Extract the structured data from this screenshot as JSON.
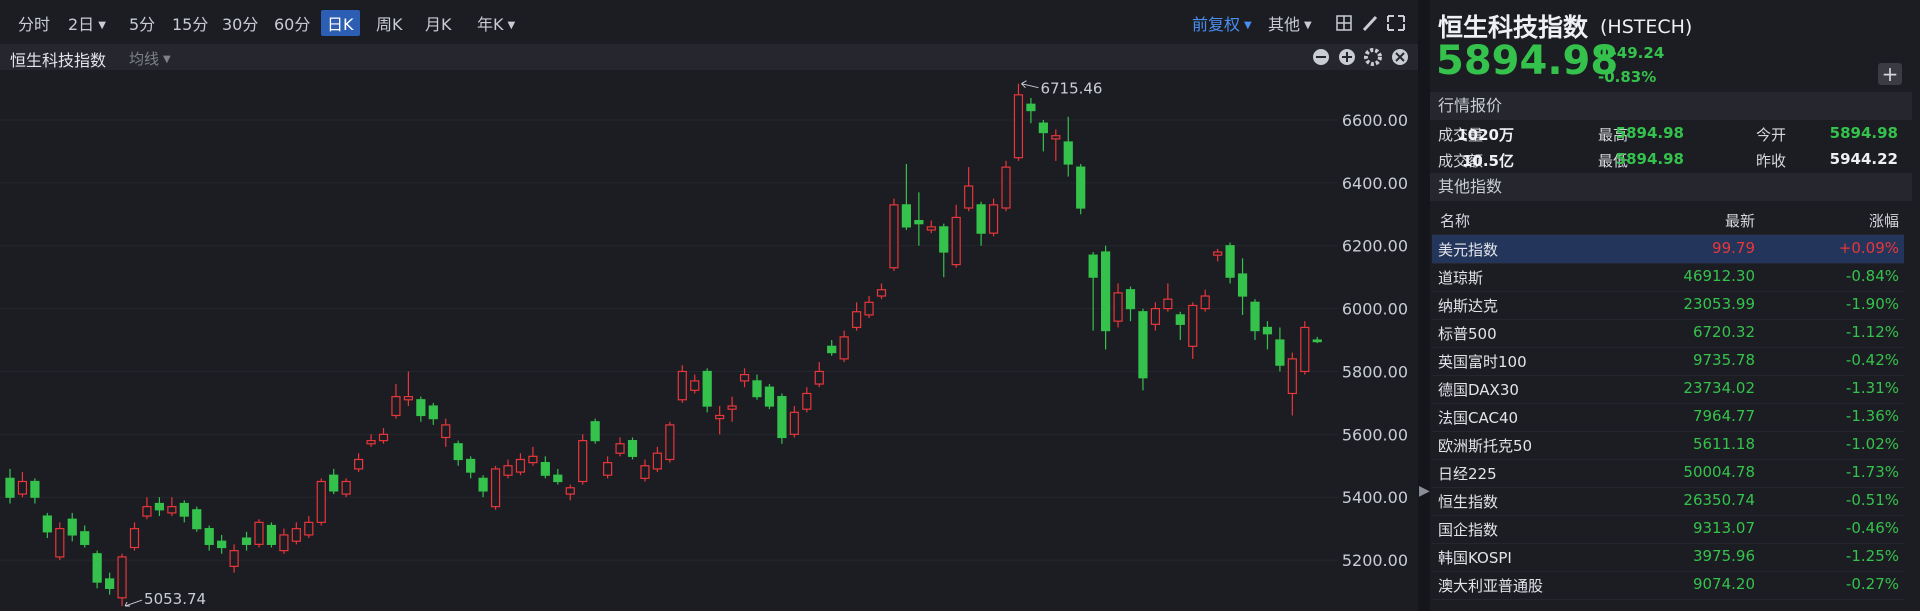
{
  "toolbar": {
    "periods": [
      "分时",
      "2日",
      "5分",
      "15分",
      "30分",
      "60分",
      "日K",
      "周K",
      "月K",
      "年K"
    ],
    "options": [
      "前复权",
      "其他"
    ]
  },
  "chart_data": {
    "type": "candlestick",
    "title": "恒生科技指数",
    "indicator": "均线",
    "open": [
      5460,
      5410,
      5450,
      5340,
      5210,
      5330,
      5290,
      5220,
      5140,
      5080,
      5240,
      5340,
      5380,
      5350,
      5380,
      5360,
      5300,
      5260,
      5180,
      5270,
      5250,
      5310,
      5230,
      5260,
      5280,
      5320,
      5470,
      5410,
      5490,
      5570,
      5580,
      5660,
      5710,
      5710,
      5690,
      5590,
      5570,
      5520,
      5460,
      5370,
      5470,
      5480,
      5510,
      5510,
      5470,
      5410,
      5450,
      5640,
      5470,
      5540,
      5580,
      5460,
      5490,
      5520,
      5710,
      5740,
      5800,
      5650,
      5680,
      5770,
      5770,
      5750,
      5720,
      5600,
      5680,
      5760,
      5880,
      5840,
      5940,
      5980,
      6040,
      6130,
      6330,
      6280,
      6250,
      6260,
      6140,
      6320,
      6330,
      6240,
      6320,
      6480,
      6650,
      6590,
      6540,
      6530,
      6450,
      6170,
      6180,
      5960,
      6060,
      5990,
      5950,
      6000,
      5980,
      5880,
      6000,
      6170,
      6200,
      6110,
      6020,
      5940,
      5900,
      5730,
      5800,
      5900
    ],
    "high": [
      5490,
      5480,
      5460,
      5350,
      5320,
      5350,
      5310,
      5230,
      5160,
      5220,
      5320,
      5400,
      5400,
      5400,
      5390,
      5370,
      5310,
      5280,
      5250,
      5290,
      5330,
      5320,
      5300,
      5320,
      5340,
      5460,
      5490,
      5460,
      5540,
      5600,
      5620,
      5760,
      5800,
      5720,
      5700,
      5650,
      5580,
      5530,
      5470,
      5500,
      5520,
      5540,
      5560,
      5530,
      5490,
      5440,
      5600,
      5650,
      5530,
      5590,
      5590,
      5520,
      5560,
      5640,
      5820,
      5790,
      5810,
      5690,
      5720,
      5810,
      5790,
      5760,
      5730,
      5690,
      5750,
      5830,
      5900,
      5930,
      6020,
      6040,
      6080,
      6350,
      6460,
      6370,
      6280,
      6270,
      6330,
      6450,
      6340,
      6350,
      6470,
      6715.46,
      6670,
      6600,
      6570,
      6610,
      6460,
      6180,
      6200,
      6080,
      6070,
      6000,
      6020,
      6080,
      5990,
      6020,
      6060,
      6190,
      6210,
      6160,
      6030,
      5960,
      5940,
      5860,
      5960,
      5910
    ],
    "low": [
      5380,
      5400,
      5380,
      5270,
      5200,
      5260,
      5240,
      5110,
      5090,
      5053.74,
      5230,
      5330,
      5340,
      5340,
      5320,
      5290,
      5230,
      5220,
      5160,
      5230,
      5240,
      5240,
      5220,
      5250,
      5270,
      5310,
      5410,
      5400,
      5480,
      5560,
      5570,
      5650,
      5690,
      5640,
      5630,
      5560,
      5500,
      5460,
      5400,
      5360,
      5460,
      5470,
      5500,
      5460,
      5440,
      5390,
      5440,
      5570,
      5460,
      5530,
      5520,
      5450,
      5480,
      5510,
      5700,
      5730,
      5670,
      5600,
      5640,
      5750,
      5710,
      5680,
      5570,
      5590,
      5670,
      5750,
      5850,
      5830,
      5930,
      5970,
      6030,
      6120,
      6250,
      6200,
      6240,
      6100,
      6130,
      6310,
      6200,
      6230,
      6310,
      6470,
      6590,
      6500,
      6470,
      6420,
      6300,
      5930,
      5870,
      5940,
      5960,
      5740,
      5930,
      5990,
      5900,
      5840,
      5990,
      6150,
      6080,
      5980,
      5900,
      5870,
      5800,
      5660,
      5790,
      5890
    ],
    "close": [
      5400,
      5450,
      5400,
      5290,
      5300,
      5280,
      5250,
      5130,
      5110,
      5210,
      5300,
      5370,
      5360,
      5370,
      5340,
      5300,
      5250,
      5240,
      5230,
      5250,
      5320,
      5250,
      5280,
      5300,
      5320,
      5450,
      5420,
      5450,
      5520,
      5580,
      5600,
      5720,
      5720,
      5660,
      5650,
      5630,
      5520,
      5480,
      5420,
      5490,
      5500,
      5520,
      5530,
      5470,
      5450,
      5430,
      5580,
      5580,
      5510,
      5570,
      5530,
      5500,
      5540,
      5630,
      5800,
      5770,
      5690,
      5660,
      5690,
      5790,
      5720,
      5690,
      5590,
      5670,
      5730,
      5800,
      5860,
      5910,
      5990,
      6020,
      6060,
      6330,
      6260,
      6270,
      6260,
      6180,
      6290,
      6390,
      6240,
      6330,
      6450,
      6680,
      6630,
      6560,
      6550,
      6460,
      6320,
      6100,
      5930,
      6050,
      6000,
      5780,
      6000,
      6030,
      5950,
      6010,
      6040,
      6180,
      6100,
      6040,
      5930,
      5920,
      5820,
      5840,
      5940,
      5895
    ],
    "up_color": "#e8363a",
    "down_color": "#35c24c",
    "ylim": [
      5038,
      6759
    ],
    "yticks": [
      {
        "value": 5200,
        "label": "5200.00"
      },
      {
        "value": 5400,
        "label": "5400.00"
      },
      {
        "value": 5600,
        "label": "5600.00"
      },
      {
        "value": 5800,
        "label": "5800.00"
      },
      {
        "value": 6000,
        "label": "6000.00"
      },
      {
        "value": 6200,
        "label": "6200.00"
      },
      {
        "value": 6400,
        "label": "6400.00"
      },
      {
        "value": 6600,
        "label": "6600.00"
      }
    ],
    "grid": true
  },
  "quote": {
    "name": "恒生科技指数",
    "code": "(HSTECH)",
    "price": "5894.98",
    "change": "-49.24",
    "change_pct": "-0.83%",
    "section_title": "行情报价",
    "stats": [
      [
        "成交量",
        "1020万",
        "最高",
        "5894.98",
        "今开",
        "5894.98"
      ],
      [
        "成交额",
        "10.5亿",
        "最低",
        "5894.98",
        "昨收",
        "5944.22"
      ]
    ]
  },
  "other_indices": {
    "title": "其他指数",
    "columns": [
      "名称",
      "最新",
      "涨幅"
    ],
    "rows": [
      [
        "美元指数",
        "99.79",
        "+0.09%"
      ],
      [
        "道琼斯",
        "46912.30",
        "-0.84%"
      ],
      [
        "纳斯达克",
        "23053.99",
        "-1.90%"
      ],
      [
        "标普500",
        "6720.32",
        "-1.12%"
      ],
      [
        "英国富时100",
        "9735.78",
        "-0.42%"
      ],
      [
        "德国DAX30",
        "23734.02",
        "-1.31%"
      ],
      [
        "法国CAC40",
        "7964.77",
        "-1.36%"
      ],
      [
        "欧洲斯托克50",
        "5611.18",
        "-1.02%"
      ],
      [
        "日经225",
        "50004.78",
        "-1.73%"
      ],
      [
        "恒生指数",
        "26350.74",
        "-0.51%"
      ],
      [
        "国企指数",
        "9313.07",
        "-0.46%"
      ],
      [
        "韩国KOSPI",
        "3975.96",
        "-1.25%"
      ],
      [
        "澳大利亚普通股",
        "9074.20",
        "-0.27%"
      ]
    ]
  }
}
